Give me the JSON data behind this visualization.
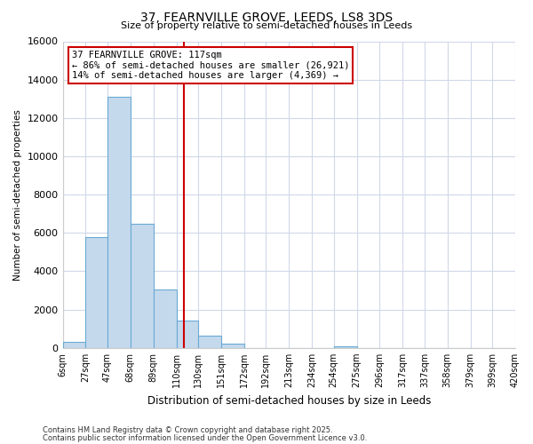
{
  "title": "37, FEARNVILLE GROVE, LEEDS, LS8 3DS",
  "subtitle": "Size of property relative to semi-detached houses in Leeds",
  "xlabel": "Distribution of semi-detached houses by size in Leeds",
  "ylabel": "Number of semi-detached properties",
  "bin_edges": [
    6,
    27,
    47,
    68,
    89,
    110,
    130,
    151,
    172,
    192,
    213,
    234,
    254,
    275,
    296,
    317,
    337,
    358,
    379,
    399,
    420
  ],
  "bin_labels": [
    "6sqm",
    "27sqm",
    "47sqm",
    "68sqm",
    "89sqm",
    "110sqm",
    "130sqm",
    "151sqm",
    "172sqm",
    "192sqm",
    "213sqm",
    "234sqm",
    "254sqm",
    "275sqm",
    "296sqm",
    "317sqm",
    "337sqm",
    "358sqm",
    "379sqm",
    "399sqm",
    "420sqm"
  ],
  "counts": [
    300,
    5800,
    13100,
    6500,
    3050,
    1450,
    620,
    200,
    0,
    0,
    0,
    0,
    100,
    0,
    0,
    0,
    0,
    0,
    0,
    0
  ],
  "bar_facecolor": "#c5d9ed",
  "bar_edgecolor": "#6aaad4",
  "property_line_x": 117,
  "property_line_color": "#cc0000",
  "ylim": [
    0,
    16000
  ],
  "yticks": [
    0,
    2000,
    4000,
    6000,
    8000,
    10000,
    12000,
    14000,
    16000
  ],
  "annotation_box_title": "37 FEARNVILLE GROVE: 117sqm",
  "annotation_line1": "← 86% of semi-detached houses are smaller (26,921)",
  "annotation_line2": "14% of semi-detached houses are larger (4,369) →",
  "annotation_box_edgecolor": "#cc0000",
  "bg_color": "#ffffff",
  "grid_color": "#d0d8e8",
  "footer1": "Contains HM Land Registry data © Crown copyright and database right 2025.",
  "footer2": "Contains public sector information licensed under the Open Government Licence v3.0."
}
